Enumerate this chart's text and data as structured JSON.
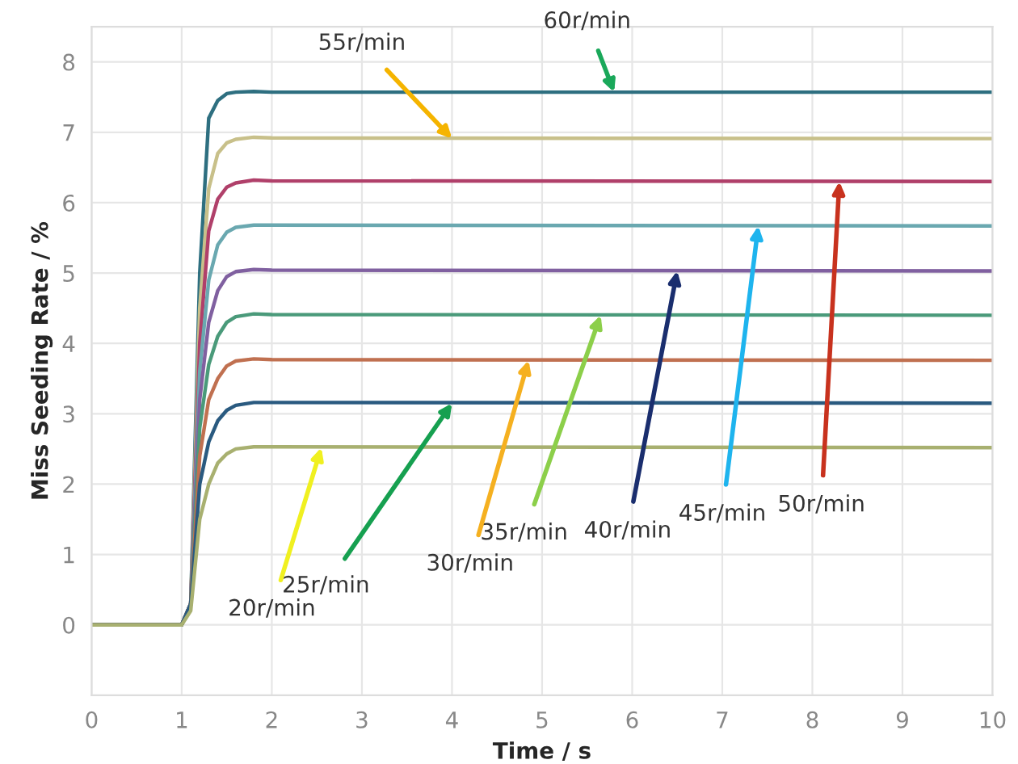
{
  "chart_data": {
    "type": "line",
    "xlabel": "Time / s",
    "ylabel": "Miss Seeding Rate / %",
    "x": [
      0,
      1.0,
      1.1,
      1.2,
      1.3,
      1.4,
      1.5,
      1.6,
      1.8,
      2.0,
      10
    ],
    "series": [
      {
        "color": "#2e6f80",
        "values": [
          0,
          0,
          0.3,
          5.0,
          7.2,
          7.45,
          7.55,
          7.57,
          7.58,
          7.57,
          7.57
        ]
      },
      {
        "color": "#c8c08a",
        "values": [
          0,
          0,
          0.3,
          4.5,
          6.2,
          6.7,
          6.85,
          6.9,
          6.93,
          6.92,
          6.91
        ]
      },
      {
        "color": "#b0406a",
        "values": [
          0,
          0,
          0.3,
          4.0,
          5.6,
          6.05,
          6.22,
          6.28,
          6.32,
          6.31,
          6.3
        ]
      },
      {
        "color": "#6aa8b0",
        "values": [
          0,
          0,
          0.3,
          3.6,
          4.9,
          5.4,
          5.58,
          5.65,
          5.68,
          5.68,
          5.67
        ]
      },
      {
        "color": "#8060a0",
        "values": [
          0,
          0,
          0.3,
          3.2,
          4.3,
          4.75,
          4.95,
          5.02,
          5.05,
          5.04,
          5.03
        ]
      },
      {
        "color": "#4a9a7a",
        "values": [
          0,
          0,
          0.3,
          2.8,
          3.7,
          4.1,
          4.3,
          4.38,
          4.42,
          4.41,
          4.4
        ]
      },
      {
        "color": "#c07050",
        "values": [
          0,
          0,
          0.3,
          2.4,
          3.2,
          3.5,
          3.68,
          3.75,
          3.78,
          3.77,
          3.76
        ]
      },
      {
        "color": "#2a5a80",
        "values": [
          0,
          0,
          0.3,
          2.0,
          2.6,
          2.9,
          3.05,
          3.12,
          3.16,
          3.16,
          3.15
        ]
      },
      {
        "color": "#a8b070",
        "values": [
          0,
          0,
          0.2,
          1.5,
          2.0,
          2.3,
          2.43,
          2.5,
          2.53,
          2.53,
          2.52
        ]
      }
    ],
    "annotations": [
      {
        "text": "60r/min",
        "x": 5.8,
        "y": 7.57
      },
      {
        "text": "55r/min",
        "x": 4.0,
        "y": 6.91
      },
      {
        "text": "50r/min",
        "x": 8.3,
        "y": 6.3
      },
      {
        "text": "45r/min",
        "x": 7.4,
        "y": 5.67
      },
      {
        "text": "40r/min",
        "x": 6.5,
        "y": 5.03
      },
      {
        "text": "35r/min",
        "x": 5.65,
        "y": 4.4
      },
      {
        "text": "30r/min",
        "x": 4.85,
        "y": 3.76
      },
      {
        "text": "25r/min",
        "x": 4.0,
        "y": 3.15
      },
      {
        "text": "20r/min",
        "x": 2.55,
        "y": 2.52
      }
    ],
    "xlim": [
      0,
      10
    ],
    "xticks": [
      0,
      1,
      2,
      3,
      4,
      5,
      6,
      7,
      8,
      9,
      10
    ],
    "ylim": [
      -1,
      8.5
    ],
    "yticks": [
      0,
      1,
      2,
      3,
      4,
      5,
      6,
      7,
      8
    ],
    "grid": true,
    "legend": false
  }
}
